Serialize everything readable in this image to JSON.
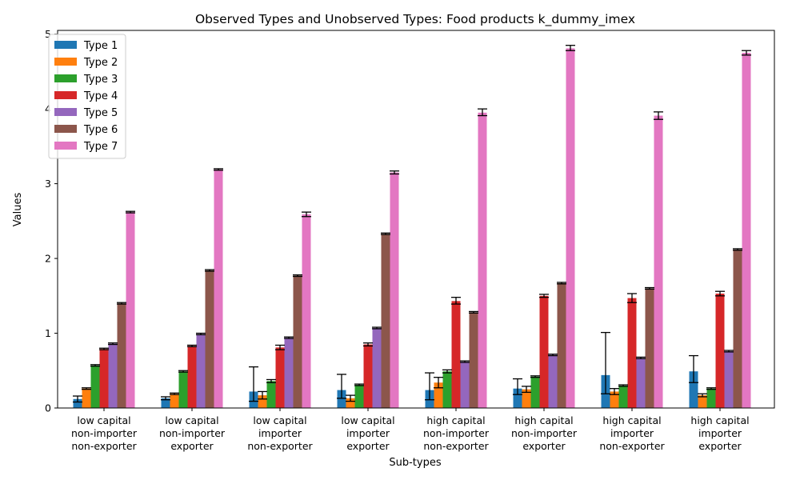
{
  "chart_data": {
    "type": "bar",
    "title": "Observed Types and Unobserved Types: Food products k_dummy_imex",
    "xlabel": "Sub-types",
    "ylabel": "Values",
    "ylim": [
      0,
      5.05
    ],
    "yticks": [
      0,
      1,
      2,
      3,
      4,
      5
    ],
    "grid": false,
    "legend_position": "top-left",
    "categories": [
      [
        "low capital",
        "non-importer",
        "non-exporter"
      ],
      [
        "low capital",
        "non-importer",
        "exporter"
      ],
      [
        "low capital",
        "importer",
        "non-exporter"
      ],
      [
        "low capital",
        "importer",
        "exporter"
      ],
      [
        "high capital",
        "non-importer",
        "non-exporter"
      ],
      [
        "high capital",
        "non-importer",
        "exporter"
      ],
      [
        "high capital",
        "importer",
        "non-exporter"
      ],
      [
        "high capital",
        "importer",
        "exporter"
      ]
    ],
    "series": [
      {
        "name": "Type 1",
        "color": "#1f77b4",
        "values": [
          0.12,
          0.13,
          0.22,
          0.24,
          0.24,
          0.26,
          0.44,
          0.49
        ],
        "err": [
          [
            0.08,
            0.16
          ],
          [
            0.11,
            0.15
          ],
          [
            0.09,
            0.55
          ],
          [
            0.13,
            0.45
          ],
          [
            0.11,
            0.47
          ],
          [
            0.18,
            0.39
          ],
          [
            0.19,
            1.01
          ],
          [
            0.34,
            0.7
          ]
        ]
      },
      {
        "name": "Type 2",
        "color": "#ff7f0e",
        "values": [
          0.26,
          0.19,
          0.17,
          0.13,
          0.34,
          0.25,
          0.22,
          0.17
        ],
        "err": [
          [
            0.25,
            0.27
          ],
          [
            0.18,
            0.2
          ],
          [
            0.12,
            0.22
          ],
          [
            0.09,
            0.17
          ],
          [
            0.27,
            0.41
          ],
          [
            0.21,
            0.29
          ],
          [
            0.18,
            0.26
          ],
          [
            0.15,
            0.19
          ]
        ]
      },
      {
        "name": "Type 3",
        "color": "#2ca02c",
        "values": [
          0.57,
          0.49,
          0.36,
          0.31,
          0.49,
          0.42,
          0.3,
          0.26
        ],
        "err": [
          [
            0.56,
            0.58
          ],
          [
            0.48,
            0.5
          ],
          [
            0.34,
            0.38
          ],
          [
            0.3,
            0.32
          ],
          [
            0.47,
            0.51
          ],
          [
            0.41,
            0.43
          ],
          [
            0.29,
            0.31
          ],
          [
            0.25,
            0.27
          ]
        ]
      },
      {
        "name": "Type 4",
        "color": "#d62728",
        "values": [
          0.79,
          0.83,
          0.81,
          0.85,
          1.43,
          1.5,
          1.47,
          1.53
        ],
        "err": [
          [
            0.78,
            0.8
          ],
          [
            0.82,
            0.84
          ],
          [
            0.78,
            0.84
          ],
          [
            0.83,
            0.87
          ],
          [
            1.39,
            1.48
          ],
          [
            1.48,
            1.52
          ],
          [
            1.41,
            1.53
          ],
          [
            1.5,
            1.56
          ]
        ]
      },
      {
        "name": "Type 5",
        "color": "#9467bd",
        "values": [
          0.86,
          0.99,
          0.94,
          1.07,
          0.62,
          0.71,
          0.67,
          0.76
        ],
        "err": [
          [
            0.85,
            0.87
          ],
          [
            0.98,
            1.0
          ],
          [
            0.93,
            0.95
          ],
          [
            1.06,
            1.08
          ],
          [
            0.61,
            0.63
          ],
          [
            0.7,
            0.72
          ],
          [
            0.66,
            0.68
          ],
          [
            0.75,
            0.77
          ]
        ]
      },
      {
        "name": "Type 6",
        "color": "#8c564b",
        "values": [
          1.4,
          1.84,
          1.77,
          2.33,
          1.28,
          1.67,
          1.6,
          2.12
        ],
        "err": [
          [
            1.39,
            1.41
          ],
          [
            1.83,
            1.85
          ],
          [
            1.76,
            1.78
          ],
          [
            2.32,
            2.34
          ],
          [
            1.27,
            1.29
          ],
          [
            1.66,
            1.68
          ],
          [
            1.59,
            1.61
          ],
          [
            2.11,
            2.13
          ]
        ]
      },
      {
        "name": "Type 7",
        "color": "#e377c2",
        "values": [
          2.62,
          3.19,
          2.59,
          3.15,
          3.95,
          4.81,
          3.91,
          4.75
        ],
        "err": [
          [
            2.61,
            2.63
          ],
          [
            3.18,
            3.2
          ],
          [
            2.56,
            2.62
          ],
          [
            3.13,
            3.17
          ],
          [
            3.91,
            4.0
          ],
          [
            4.78,
            4.85
          ],
          [
            3.86,
            3.96
          ],
          [
            4.72,
            4.78
          ]
        ]
      }
    ]
  }
}
